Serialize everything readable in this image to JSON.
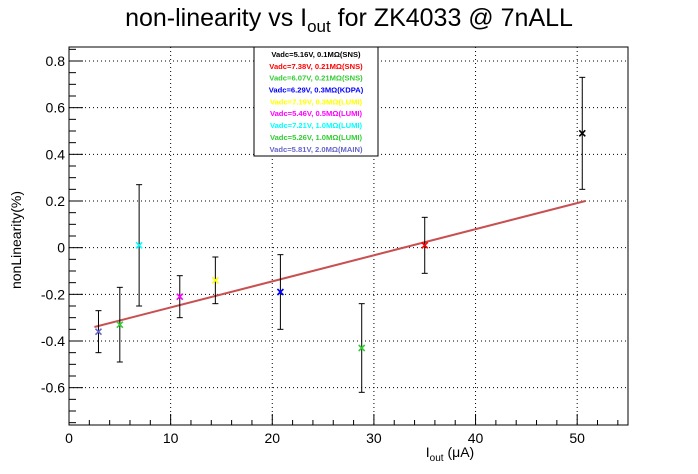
{
  "title": {
    "prefix": "non-linearity vs I",
    "sub": "out",
    "suffix": " for ZK4033 @ 7nALL"
  },
  "axes": {
    "ylabel": "nonLinearity(%)",
    "xlabel_main": "I",
    "xlabel_sub": "out",
    "xlabel_unit": " (μA)"
  },
  "chart_data": {
    "type": "scatter",
    "xlim": [
      0,
      55
    ],
    "ylim": [
      -0.76,
      0.86
    ],
    "xticks": [
      0,
      10,
      20,
      30,
      40,
      50
    ],
    "yticks": [
      -0.6,
      -0.4,
      -0.2,
      0,
      0.2,
      0.4,
      0.6,
      0.8
    ],
    "grid": true,
    "legend_position": "top-center",
    "series": [
      {
        "name": "Vadc=5.16V, 0.1MΩ(SNS)",
        "color": "#000000",
        "points": [
          {
            "x": 50.5,
            "y": 0.49,
            "yerr": 0.24
          }
        ]
      },
      {
        "name": "Vadc=7.38V, 0.21MΩ(SNS)",
        "color": "#ff0000",
        "points": [
          {
            "x": 35.0,
            "y": 0.01,
            "yerr": 0.12
          }
        ]
      },
      {
        "name": "Vadc=6.07V, 0.21MΩ(SNS)",
        "color": "#33cc33",
        "points": [
          {
            "x": 28.8,
            "y": -0.43,
            "yerr": 0.19
          }
        ]
      },
      {
        "name": "Vadc=6.29V, 0.3MΩ(KDPA)",
        "color": "#0000ff",
        "points": [
          {
            "x": 20.8,
            "y": -0.19,
            "yerr": 0.16
          }
        ]
      },
      {
        "name": "Vadc=7.19V, 0.3MΩ(LUMI)",
        "color": "#ffff00",
        "points": [
          {
            "x": 14.4,
            "y": -0.14,
            "yerr": 0.1
          }
        ]
      },
      {
        "name": "Vadc=5.46V, 0.5MΩ(LUMI)",
        "color": "#ff00ff",
        "points": [
          {
            "x": 10.9,
            "y": -0.21,
            "yerr": 0.09
          }
        ]
      },
      {
        "name": "Vadc=7.21V, 1.0MΩ(LUMI)",
        "color": "#00ffff",
        "points": [
          {
            "x": 6.9,
            "y": 0.01,
            "yerr": 0.26
          }
        ]
      },
      {
        "name": "Vadc=5.26V, 1.0MΩ(LUMI)",
        "color": "#33cc33",
        "points": [
          {
            "x": 5.0,
            "y": -0.33,
            "yerr": 0.16
          }
        ]
      },
      {
        "name": "Vadc=5.81V, 2.0MΩ(MAIN)",
        "color": "#6666cc",
        "points": [
          {
            "x": 2.9,
            "y": -0.36,
            "yerr": 0.09
          }
        ]
      }
    ],
    "fit": {
      "color": "#c85050",
      "x": [
        2.5,
        50.8
      ],
      "y": [
        -0.34,
        0.2
      ]
    }
  }
}
